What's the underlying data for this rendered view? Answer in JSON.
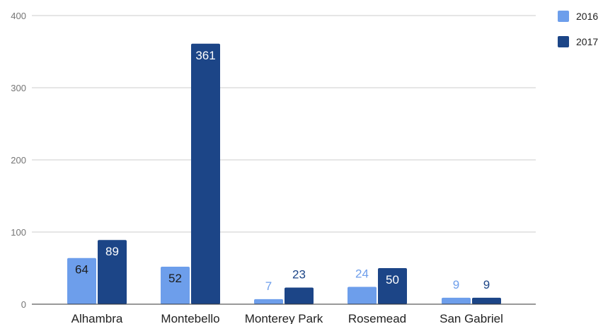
{
  "chart_data": {
    "type": "bar",
    "title": "",
    "xlabel": "",
    "ylabel": "",
    "categories": [
      "Alhambra",
      "Montebello",
      "Monterey Park",
      "Rosemead",
      "San Gabriel"
    ],
    "series": [
      {
        "name": "2016",
        "values": [
          64,
          52,
          7,
          24,
          9
        ],
        "color": "#6d9eeb"
      },
      {
        "name": "2017",
        "values": [
          89,
          361,
          23,
          50,
          9
        ],
        "color": "#1c4587"
      }
    ],
    "ylim": [
      0,
      400
    ],
    "yticks": [
      0,
      100,
      200,
      300,
      400
    ],
    "grid": true,
    "legend_position": "top-right",
    "colors": {
      "grid": "#cccccc",
      "axis": "#333333",
      "label_inside": "#ffffff",
      "label_dark": "#1c1c1c"
    }
  }
}
